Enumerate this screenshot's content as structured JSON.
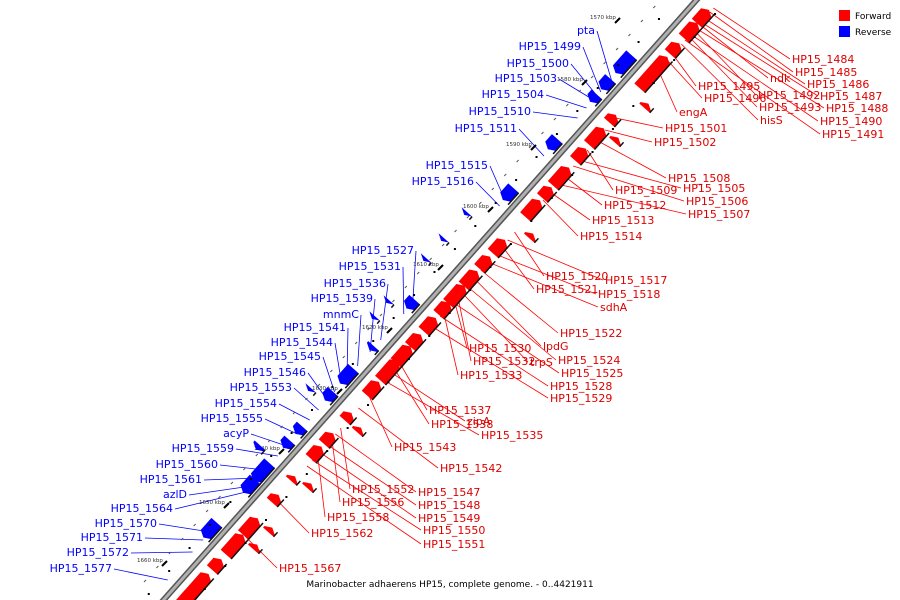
{
  "caption": "Marinobacter adhaerens HP15, complete genome. - 0..4421911",
  "legend": [
    {
      "label": "Forward",
      "color": "#ff0000"
    },
    {
      "label": "Reverse",
      "color": "#0000ff"
    }
  ],
  "colors": {
    "forward": "#ff0000",
    "reverse": "#0000ff",
    "backbone": "#9a9a9a",
    "tick": "#000000"
  },
  "ticks": [
    "1570 kbp",
    "1580 kbp",
    "1590 kbp",
    "1600 kbp",
    "1610 kbp",
    "1620 kbp",
    "1630 kbp",
    "1640 kbp",
    "1650 kbp",
    "1660 kbp"
  ],
  "reverse_labels": [
    "pta",
    "HP15_1499",
    "HP15_1500",
    "HP15_1503",
    "HP15_1504",
    "HP15_1510",
    "HP15_1511",
    "HP15_1515",
    "HP15_1516",
    "HP15_1527",
    "HP15_1531",
    "HP15_1536",
    "HP15_1539",
    "mnmC",
    "HP15_1541",
    "HP15_1544",
    "HP15_1545",
    "HP15_1546",
    "HP15_1553",
    "HP15_1554",
    "HP15_1555",
    "acyP",
    "HP15_1559",
    "HP15_1560",
    "HP15_1561",
    "azlD",
    "HP15_1564",
    "HP15_1570",
    "HP15_1571",
    "HP15_1572",
    "HP15_1577"
  ],
  "forward_labels": [
    "HP15_1484",
    "HP15_1485",
    "ndk",
    "HP15_1486",
    "HP15_1495",
    "HP15_1492",
    "HP15_1487",
    "HP15_1496",
    "HP15_1493",
    "HP15_1488",
    "engA",
    "hisS",
    "HP15_1490",
    "HP15_1491",
    "HP15_1501",
    "HP15_1502",
    "HP15_1508",
    "HP15_1509",
    "HP15_1505",
    "HP15_1512",
    "HP15_1506",
    "HP15_1507",
    "HP15_1513",
    "HP15_1514",
    "HP15_1520",
    "HP15_1517",
    "HP15_1521",
    "HP15_1518",
    "sdhA",
    "HP15_1522",
    "lpdG",
    "HP15_1530",
    "HP15_1524",
    "HP15_1532",
    "trpS",
    "HP15_1525",
    "HP15_1533",
    "HP15_1528",
    "HP15_1529",
    "HP15_1537",
    "zipA",
    "HP15_1538",
    "HP15_1535",
    "HP15_1543",
    "HP15_1542",
    "HP15_1552",
    "HP15_1547",
    "HP15_1556",
    "HP15_1548",
    "HP15_1558",
    "HP15_1549",
    "HP15_1562",
    "HP15_1550",
    "HP15_1551",
    "HP15_1567"
  ]
}
